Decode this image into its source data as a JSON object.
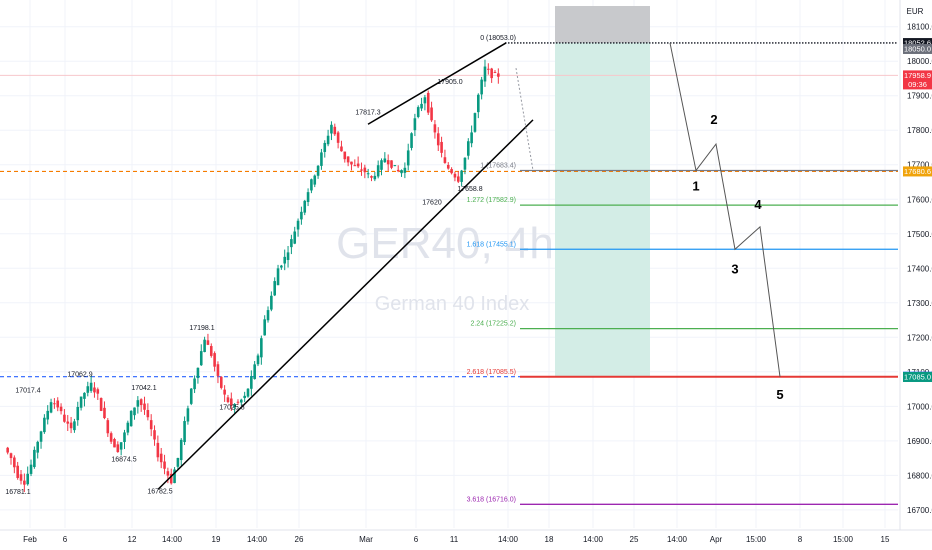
{
  "chart_data": {
    "type": "candlestick",
    "symbol": "GER40, 4h",
    "instrument_name": "German 40 Index",
    "currency": "EUR",
    "ylim": [
      16630,
      18160
    ],
    "y_ticks": [
      "18100.0",
      "18000.0",
      "17900.0",
      "17800.0",
      "17700.0",
      "17600.0",
      "17500.0",
      "17400.0",
      "17300.0",
      "17200.0",
      "17100.0",
      "17000.0",
      "16900.0",
      "16800.0",
      "16700.0"
    ],
    "x_ticks": [
      "Feb",
      "6",
      "12",
      "14:00",
      "19",
      "14:00",
      "26",
      "Mar",
      "6",
      "11",
      "14:00",
      "18",
      "14:00",
      "25",
      "14:00",
      "Apr",
      "15:00",
      "8",
      "15:00",
      "15"
    ],
    "price_path": [
      16880,
      16850,
      16800,
      16781,
      16830,
      16900,
      16960,
      17017,
      17000,
      16960,
      16930,
      17000,
      17040,
      17063,
      17030,
      16960,
      16900,
      16875,
      16920,
      16980,
      17020,
      16990,
      16930,
      16860,
      16820,
      16783,
      16850,
      16950,
      17050,
      17120,
      17198,
      17150,
      17080,
      17030,
      17000,
      17010,
      17026,
      17080,
      17150,
      17250,
      17320,
      17400,
      17430,
      17480,
      17540,
      17600,
      17650,
      17700,
      17760,
      17817,
      17760,
      17720,
      17700,
      17690,
      17680,
      17660,
      17690,
      17720,
      17700,
      17680,
      17690,
      17800,
      17860,
      17900,
      17820,
      17760,
      17700,
      17680,
      17658,
      17720,
      17800,
      17900,
      17980,
      17960,
      17959
    ],
    "swing_labels": [
      {
        "text": "16781.1",
        "price": 16781.1
      },
      {
        "text": "17017.4",
        "price": 17017.4
      },
      {
        "text": "17062.9",
        "price": 17062.9
      },
      {
        "text": "16874.5",
        "price": 16874.5
      },
      {
        "text": "16782.5",
        "price": 16782.5
      },
      {
        "text": "17198.1",
        "price": 17198.1
      },
      {
        "text": "17025.8",
        "price": 17025.8
      },
      {
        "text": "17817.3",
        "price": 17817.3
      },
      {
        "text": "17905.0",
        "price": 17905.0
      },
      {
        "text": "17620",
        "price": 17620
      },
      {
        "text": "17658.8",
        "price": 17658.8
      },
      {
        "text": "17042.1",
        "price": 17042.1
      }
    ],
    "fib_levels": [
      {
        "ratio": "0",
        "text": "0 (18053.0)",
        "price": 18053.0,
        "color": "#131722",
        "style": "dotted"
      },
      {
        "ratio": "1",
        "text": "1 (17683.4)",
        "price": 17683.4,
        "color": "#787b86",
        "style": "solid"
      },
      {
        "ratio": "1.272",
        "text": "1.272 (17582.9)",
        "price": 17582.9,
        "color": "#4caf50",
        "style": "solid"
      },
      {
        "ratio": "1.618",
        "text": "1.618 (17455.1)",
        "price": 17455.1,
        "color": "#2196f3",
        "style": "solid"
      },
      {
        "ratio": "2.24",
        "text": "2.24 (17225.2)",
        "price": 17225.2,
        "color": "#4caf50",
        "style": "solid"
      },
      {
        "ratio": "2.618",
        "text": "2.618 (17085.5)",
        "price": 17085.5,
        "color": "#e53935",
        "style": "solid"
      },
      {
        "ratio": "3.618",
        "text": "3.618 (16716.0)",
        "price": 16716.0,
        "color": "#9c27b0",
        "style": "solid"
      }
    ],
    "orange_level": 17680.6,
    "blue_dashed_level": 17085.9,
    "price_badges": [
      {
        "text": "18052.6",
        "price": 18052.6,
        "bg": "#131722"
      },
      {
        "text": "18050.0",
        "price": 18050.0,
        "bg": "#6b6f7a"
      },
      {
        "text": "17958.9",
        "price": 17958.9,
        "bg": "#f23645",
        "sub": "09:36"
      },
      {
        "text": "17680.6",
        "price": 17680.6,
        "bg": "#f0a30a"
      },
      {
        "text": "17085.9",
        "price": 17085.9,
        "bg": "#2962ff"
      },
      {
        "text": "17085.0",
        "price": 17085.0,
        "bg": "#089981"
      }
    ],
    "projection_path": [
      {
        "price": 18053.0,
        "wave": ""
      },
      {
        "price": 17683.4,
        "wave": "1"
      },
      {
        "price": 17760,
        "wave": "2"
      },
      {
        "price": 17455.1,
        "wave": "3"
      },
      {
        "price": 17520,
        "wave": "4"
      },
      {
        "price": 17085.5,
        "wave": "5"
      }
    ]
  }
}
